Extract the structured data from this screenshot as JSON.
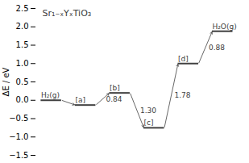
{
  "chart_data": {
    "type": "energy_levels",
    "title": "Sr₁₋ₓYₓTiO₃",
    "ylabel": "ΔE / eV",
    "categories": [
      "H₂(g)",
      "[a]",
      "[b]",
      "[c]",
      "[d]",
      "H₂O(g)"
    ],
    "values": [
      0.0,
      -0.13,
      0.2,
      -0.75,
      1.0,
      1.88
    ],
    "step_labels": [
      null,
      "0.84",
      "1.30",
      "1.78",
      "0.88"
    ],
    "color": "#404040",
    "ylim": [
      -1.5,
      2.5
    ],
    "yticks": [
      {
        "value": -1.5,
        "label": "−1.5"
      },
      {
        "value": -1.0,
        "label": "−1.0"
      },
      {
        "value": -0.5,
        "label": "−0.5"
      },
      {
        "value": 0.0,
        "label": "0.0"
      },
      {
        "value": 0.5,
        "label": "0.5"
      },
      {
        "value": 1.0,
        "label": "1.0"
      },
      {
        "value": 1.5,
        "label": "1.5"
      },
      {
        "value": 2.0,
        "label": "2.0"
      },
      {
        "value": 2.5,
        "label": "2.5"
      }
    ],
    "grid": false,
    "tick_labels": "y"
  }
}
